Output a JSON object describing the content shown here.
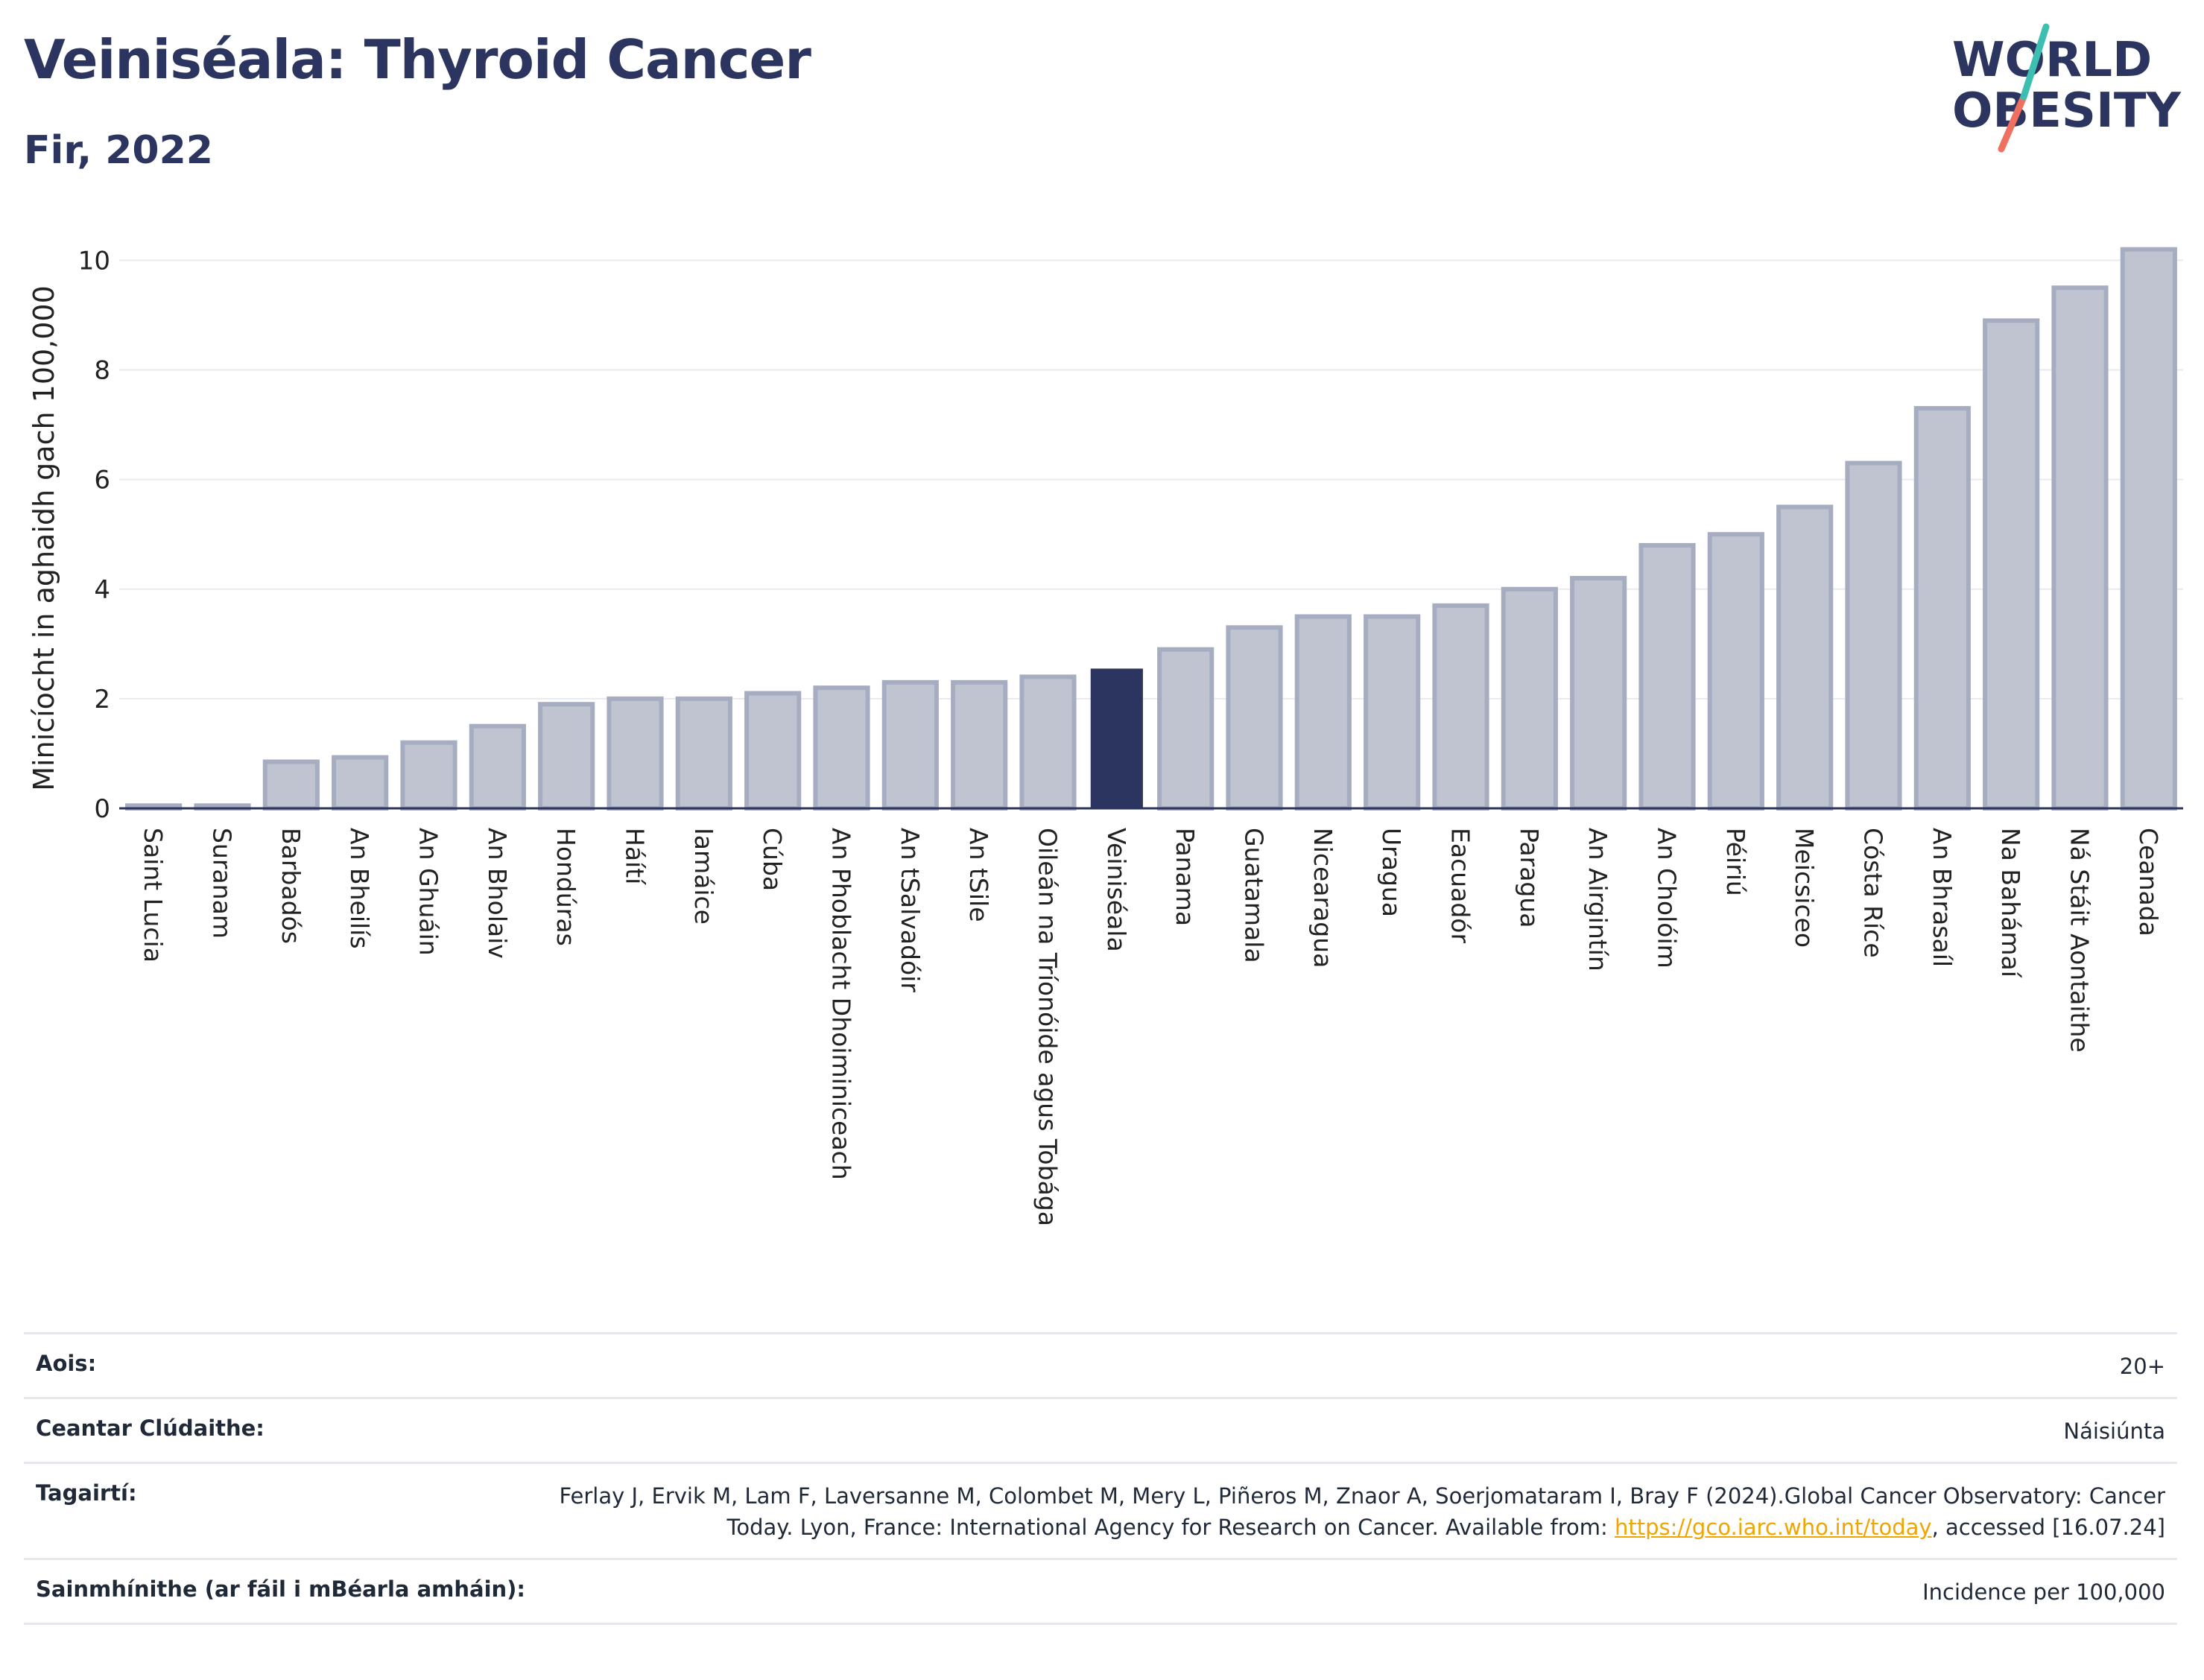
{
  "title": "Veiniséala: Thyroid Cancer",
  "subtitle": "Fir, 2022",
  "logo": {
    "line1": "WORLD",
    "line2": "OBESITY",
    "colors": {
      "text": "#2c355f",
      "slash_teal": "#3cbfb0",
      "slash_coral": "#f07060"
    }
  },
  "chart_data": {
    "type": "bar",
    "ylabel": "Minicíocht in aghaidh gach 100,000",
    "xlabel": "",
    "ylim": [
      0,
      10.4
    ],
    "yticks": [
      0,
      2,
      4,
      6,
      8,
      10
    ],
    "grid": true,
    "highlight": "Veiniséala",
    "colors": {
      "bar": "#c0c4d1",
      "bar_edge": "#a7adc1",
      "highlight": "#2c355f",
      "grid": "#e8eaef",
      "axis": "#2c355f"
    },
    "categories": [
      "Saint Lucia",
      "Suranam",
      "Barbadós",
      "An Bheilís",
      "An Ghuáin",
      "An Bholaiv",
      "Hondúras",
      "Háítí",
      "Iamáice",
      "Cúba",
      "An Phoblacht Dhoiminiceach",
      "An tSalvadóir",
      "An tSile",
      "Oileán na Tríonóide agus Tobága",
      "Veiniséala",
      "Panama",
      "Guatamala",
      "Nicearagua",
      "Uragua",
      "Eacuadór",
      "Paragua",
      "An Airgintín",
      "An Cholóim",
      "Péiriú",
      "Meicsiceo",
      "Cósta Ríce",
      "An Bhrasaíl",
      "Na Bahámaí",
      "Ná Stáit Aontaithe",
      "Ceanada"
    ],
    "values": [
      0.05,
      0.05,
      0.85,
      0.93,
      1.2,
      1.5,
      1.9,
      2.0,
      2.0,
      2.1,
      2.2,
      2.3,
      2.3,
      2.4,
      2.55,
      2.9,
      3.3,
      3.5,
      3.5,
      3.7,
      4.0,
      4.2,
      4.8,
      5.0,
      5.5,
      6.3,
      7.3,
      8.9,
      9.5,
      10.2
    ]
  },
  "info": {
    "rows": [
      {
        "label": "Aois:",
        "value": "20+"
      },
      {
        "label": "Ceantar Clúdaithe:",
        "value": "Náisiúnta"
      },
      {
        "label": "Tagairtí:",
        "value_before": "Ferlay J, Ervik M, Lam F, Laversanne M, Colombet M, Mery L, Piñeros M, Znaor A, Soerjomataram I, Bray F (2024).Global Cancer Observatory: Cancer Today. Lyon, France: International Agency for Research on Cancer. Available from: ",
        "link": "https://gco.iarc.who.int/today",
        "value_after": ", accessed [16.07.24]"
      },
      {
        "label": "Sainmhínithe (ar fáil i mBéarla amháin):",
        "value": "Incidence per 100,000"
      }
    ]
  }
}
